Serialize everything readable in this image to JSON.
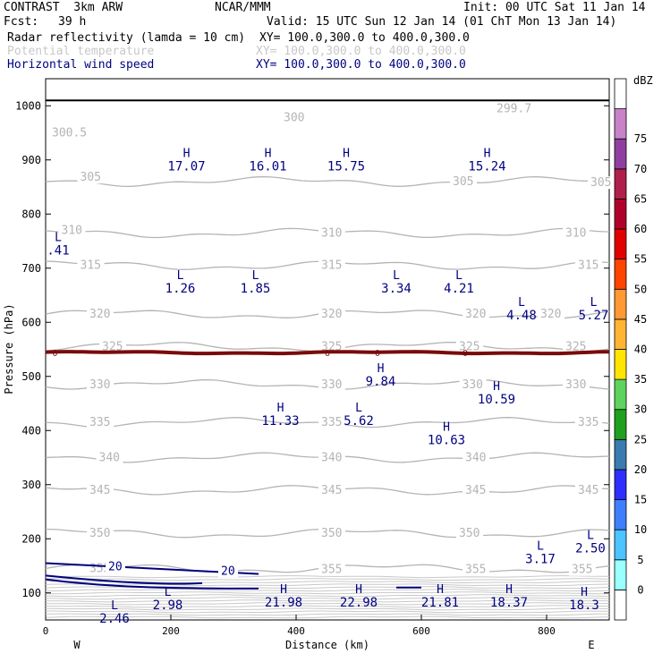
{
  "header": {
    "model": "CONTRAST  3km ARW",
    "org": "NCAR/MMM",
    "init": "Init: 00 UTC Sat 11 Jan 14",
    "fcst_label": "Fcst:",
    "fcst_value": "39 h",
    "valid": "Valid: 15 UTC Sun 12 Jan 14 (01 ChT Mon 13 Jan 14)",
    "field1": "Radar reflectivity (lamda = 10 cm)",
    "field1_xy": "XY= 100.0,300.0 to 400.0,300.0",
    "field2": "Potential temperature",
    "field2_xy": "XY= 100.0,300.0 to 400.0,300.0",
    "field3": "Horizontal wind speed",
    "field3_xy": "XY= 100.0,300.0 to 400.0,300.0"
  },
  "chart_data": {
    "type": "cross-section",
    "xlabel": "Distance (km)",
    "ylabel": "Pressure (hPa)",
    "xlim": [
      0,
      900
    ],
    "ylim": [
      1050,
      50
    ],
    "x_ticks": [
      0,
      200,
      400,
      600,
      800
    ],
    "y_ticks": [
      100,
      200,
      300,
      400,
      500,
      600,
      700,
      800,
      900,
      1000
    ],
    "west_label": "W",
    "east_label": "E",
    "theta_contours": [
      {
        "value": "355",
        "p": 145,
        "labels": [
          {
            "x": 70,
            "p": 145
          },
          {
            "x": 440,
            "p": 143
          },
          {
            "x": 670,
            "p": 143
          },
          {
            "x": 840,
            "p": 143
          }
        ]
      },
      {
        "value": "350",
        "p": 210,
        "labels": [
          {
            "x": 70,
            "p": 210
          },
          {
            "x": 440,
            "p": 210
          },
          {
            "x": 660,
            "p": 210
          }
        ]
      },
      {
        "value": "345",
        "p": 290,
        "labels": [
          {
            "x": 70,
            "p": 290
          },
          {
            "x": 440,
            "p": 290
          },
          {
            "x": 670,
            "p": 290
          },
          {
            "x": 850,
            "p": 290
          }
        ]
      },
      {
        "value": "340",
        "p": 350,
        "labels": [
          {
            "x": 85,
            "p": 350
          },
          {
            "x": 440,
            "p": 350
          },
          {
            "x": 670,
            "p": 350
          }
        ]
      },
      {
        "value": "335",
        "p": 415,
        "labels": [
          {
            "x": 70,
            "p": 415
          },
          {
            "x": 440,
            "p": 415
          },
          {
            "x": 850,
            "p": 415
          }
        ]
      },
      {
        "value": "330",
        "p": 485,
        "labels": [
          {
            "x": 70,
            "p": 485
          },
          {
            "x": 440,
            "p": 485
          },
          {
            "x": 665,
            "p": 485
          },
          {
            "x": 830,
            "p": 485
          }
        ]
      },
      {
        "value": "325",
        "p": 555,
        "labels": [
          {
            "x": 90,
            "p": 555
          },
          {
            "x": 440,
            "p": 555
          },
          {
            "x": 660,
            "p": 555
          },
          {
            "x": 830,
            "p": 555
          }
        ]
      },
      {
        "value": "320",
        "p": 615,
        "labels": [
          {
            "x": 70,
            "p": 615
          },
          {
            "x": 440,
            "p": 615
          },
          {
            "x": 670,
            "p": 615
          },
          {
            "x": 790,
            "p": 615
          }
        ]
      },
      {
        "value": "315",
        "p": 705,
        "labels": [
          {
            "x": 55,
            "p": 705
          },
          {
            "x": 440,
            "p": 705
          },
          {
            "x": 850,
            "p": 705
          }
        ]
      },
      {
        "value": "310",
        "p": 765,
        "labels": [
          {
            "x": 25,
            "p": 770
          },
          {
            "x": 440,
            "p": 765
          },
          {
            "x": 830,
            "p": 765
          }
        ]
      },
      {
        "value": "305",
        "p": 860,
        "labels": [
          {
            "x": 55,
            "p": 868
          },
          {
            "x": 650,
            "p": 860
          },
          {
            "x": 870,
            "p": 858
          }
        ]
      },
      {
        "value": "300",
        "p": 980,
        "labels": [
          {
            "x": 380,
            "p": 978
          }
        ]
      },
      {
        "value": "300.5",
        "p": 950,
        "labels": [
          {
            "x": 10,
            "p": 950
          }
        ]
      },
      {
        "value": "299.7",
        "p": 995,
        "labels": [
          {
            "x": 720,
            "p": 995
          }
        ]
      }
    ],
    "zero_reflectivity_line": {
      "label": "0",
      "label_x": [
        15,
        450,
        530,
        670
      ],
      "p": 544
    },
    "wind_contours": [
      {
        "value": "20",
        "label_positions": [
          {
            "x": 100,
            "p": 150
          },
          {
            "x": 280,
            "p": 142
          }
        ]
      }
    ],
    "wind_extrema": [
      {
        "kind": "L",
        "value": "2.46",
        "x": 110,
        "p": 70
      },
      {
        "kind": "L",
        "value": "2.98",
        "x": 195,
        "p": 95
      },
      {
        "kind": "H",
        "value": "21.98",
        "x": 380,
        "p": 100
      },
      {
        "kind": "H",
        "value": "22.98",
        "x": 500,
        "p": 100
      },
      {
        "kind": "H",
        "value": "21.81",
        "x": 630,
        "p": 100
      },
      {
        "kind": "H",
        "value": "18.37",
        "x": 740,
        "p": 100
      },
      {
        "kind": "H",
        "value": "18.3",
        "x": 860,
        "p": 95
      },
      {
        "kind": "L",
        "value": "3.17",
        "x": 790,
        "p": 180
      },
      {
        "kind": "L",
        "value": "2.50",
        "x": 870,
        "p": 200
      },
      {
        "kind": "H",
        "value": "10.63",
        "x": 640,
        "p": 400
      },
      {
        "kind": "H",
        "value": "11.33",
        "x": 375,
        "p": 435
      },
      {
        "kind": "L",
        "value": "5.62",
        "x": 500,
        "p": 435
      },
      {
        "kind": "H",
        "value": "10.59",
        "x": 720,
        "p": 475
      },
      {
        "kind": "H",
        "value": "9.84",
        "x": 535,
        "p": 508
      },
      {
        "kind": "L",
        "value": "4.48",
        "x": 760,
        "p": 630
      },
      {
        "kind": "L",
        "value": "5.27",
        "x": 875,
        "p": 630
      },
      {
        "kind": "L",
        "value": "1.26",
        "x": 215,
        "p": 680
      },
      {
        "kind": "L",
        "value": "1.85",
        "x": 335,
        "p": 680
      },
      {
        "kind": "L",
        "value": "3.34",
        "x": 560,
        "p": 680
      },
      {
        "kind": "L",
        "value": "4.21",
        "x": 660,
        "p": 680
      },
      {
        "kind": "L",
        "value": ".41",
        "x": 20,
        "p": 750
      },
      {
        "kind": "H",
        "value": "17.07",
        "x": 225,
        "p": 905
      },
      {
        "kind": "H",
        "value": "16.01",
        "x": 355,
        "p": 905
      },
      {
        "kind": "H",
        "value": "15.75",
        "x": 480,
        "p": 905
      },
      {
        "kind": "H",
        "value": "15.24",
        "x": 705,
        "p": 905
      }
    ],
    "colorbar": {
      "title": "dBZ",
      "levels": [
        "0",
        "5",
        "10",
        "15",
        "20",
        "25",
        "30",
        "35",
        "40",
        "45",
        "50",
        "55",
        "60",
        "65",
        "70",
        "75"
      ],
      "colors": [
        "#ffffff",
        "#99ffff",
        "#4cc4ff",
        "#3f7fff",
        "#2e2eff",
        "#3a7bb0",
        "#1fa01f",
        "#5fd35f",
        "#ffe500",
        "#ffb533",
        "#ff9933",
        "#ff4400",
        "#e00000",
        "#b0002a",
        "#b0204a",
        "#8f3f9f",
        "#c882c8",
        "#ffffff"
      ]
    }
  }
}
